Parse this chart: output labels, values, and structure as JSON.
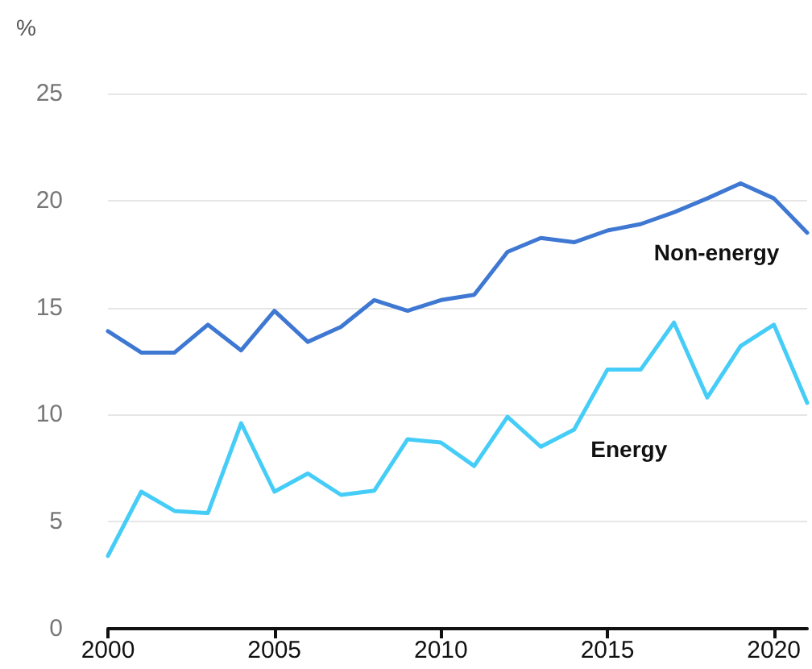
{
  "chart_data": {
    "type": "line",
    "ylabel": "%",
    "x": [
      2000,
      2001,
      2002,
      2003,
      2004,
      2005,
      2006,
      2007,
      2008,
      2009,
      2010,
      2011,
      2012,
      2013,
      2014,
      2015,
      2016,
      2017,
      2018,
      2019,
      2020,
      2021
    ],
    "series": [
      {
        "name": "Non-energy",
        "color": "#3f78d2",
        "values": [
          13.9,
          12.9,
          12.9,
          14.2,
          13.0,
          14.85,
          13.4,
          14.1,
          15.35,
          14.85,
          15.35,
          15.6,
          17.6,
          18.25,
          18.05,
          18.6,
          18.9,
          19.45,
          20.1,
          20.8,
          20.1,
          18.5
        ]
      },
      {
        "name": "Energy",
        "color": "#45cdf7",
        "values": [
          3.4,
          6.4,
          5.5,
          5.4,
          9.6,
          6.4,
          7.25,
          6.25,
          6.45,
          8.85,
          8.7,
          7.6,
          9.9,
          8.5,
          9.3,
          12.1,
          12.1,
          14.3,
          10.8,
          13.2,
          14.2,
          10.55
        ]
      }
    ],
    "xlim": [
      2000,
      2021
    ],
    "xticks": [
      2000,
      2005,
      2010,
      2015,
      2020
    ],
    "ylim": [
      0,
      25
    ],
    "yticks": [
      0,
      5,
      10,
      15,
      20,
      25
    ],
    "grid": "y",
    "legend": false,
    "marker": "none",
    "line_style": "solid"
  }
}
